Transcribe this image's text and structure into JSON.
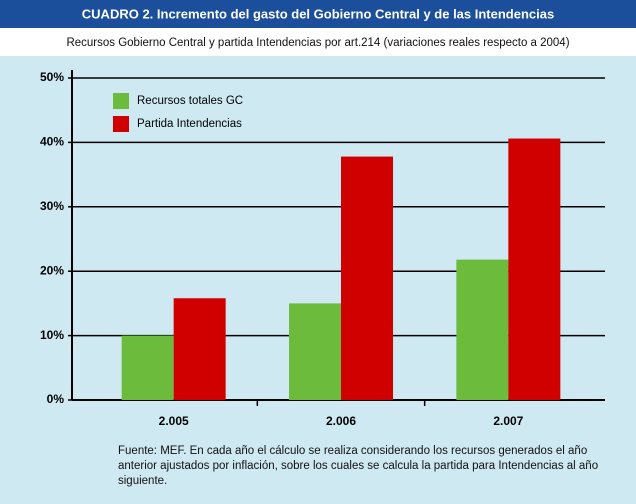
{
  "chart_data": {
    "type": "bar",
    "title": "CUADRO 2. Incremento del gasto del Gobierno Central y de las Intendencias",
    "subtitle": "Recursos Gobierno Central y partida Intendencias por art.214  (variaciones reales respecto a 2004)",
    "categories": [
      "2.005",
      "2.006",
      "2.007"
    ],
    "series": [
      {
        "name": "Recursos totales GC",
        "color": "#6cbb3c",
        "values": [
          10,
          15,
          21.8
        ]
      },
      {
        "name": "Partida Intendencias",
        "color": "#d00000",
        "values": [
          15.8,
          37.8,
          40.6
        ]
      }
    ],
    "ylim": [
      0,
      50
    ],
    "yticks": [
      {
        "value": 0,
        "label": "0%"
      },
      {
        "value": 10,
        "label": "10%"
      },
      {
        "value": 20,
        "label": "20%"
      },
      {
        "value": 30,
        "label": "30%"
      },
      {
        "value": 40,
        "label": "40%"
      },
      {
        "value": 50,
        "label": "50%"
      }
    ],
    "grid": true,
    "legend": "upper left",
    "note": "Fuente: MEF. En cada año el cálculo se realiza considerando los recursos generados el año anterior ajustados por inflación, sobre los cuales se calcula la partida para Intendencias al año siguiente."
  }
}
